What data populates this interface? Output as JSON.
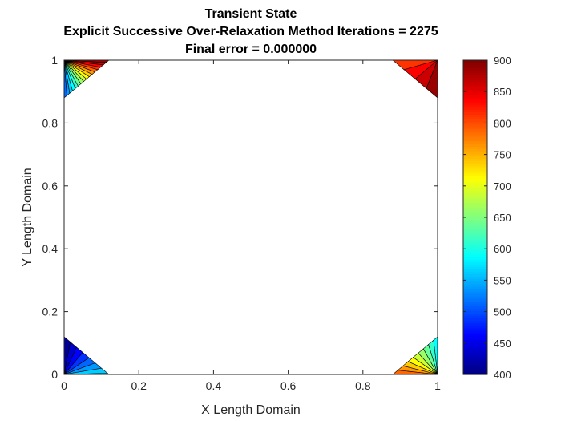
{
  "chart_data": {
    "type": "contour",
    "title_lines": [
      "Transient State",
      "Explicit Successive Over-Relaxation Method Iterations = 2275",
      "Final error = 0.000000"
    ],
    "xlabel": "X Length Domain",
    "ylabel": "Y Length Domain",
    "xlim": [
      0,
      1
    ],
    "ylim": [
      0,
      1
    ],
    "xticks": [
      0,
      0.2,
      0.4,
      0.6,
      0.8,
      1
    ],
    "xtick_labels": [
      "0",
      "0.2",
      "0.4",
      "0.6",
      "0.8",
      "1"
    ],
    "yticks": [
      0,
      0.2,
      0.4,
      0.6,
      0.8,
      1
    ],
    "ytick_labels": [
      "0",
      "0.2",
      "0.4",
      "0.6",
      "0.8",
      "1"
    ],
    "colormap": "jet",
    "clim": [
      400,
      900
    ],
    "colorbar_ticks": [
      400,
      450,
      500,
      550,
      600,
      650,
      700,
      750,
      800,
      850,
      900
    ],
    "colorbar_tick_labels": [
      "400",
      "450",
      "500",
      "550",
      "600",
      "650",
      "700",
      "750",
      "800",
      "850",
      "900"
    ],
    "contour_levels": [
      400,
      425,
      450,
      475,
      500,
      525,
      550,
      575,
      600,
      625,
      650,
      675,
      700,
      725,
      750,
      775,
      800,
      825,
      850,
      875,
      900
    ],
    "corner_regions": [
      {
        "corner": "top-left",
        "extent": 0.12,
        "values_along_edge": [
          500,
          900
        ]
      },
      {
        "corner": "top-right",
        "extent": 0.12,
        "values_along_edge": [
          900,
          800
        ]
      },
      {
        "corner": "bottom-left",
        "extent": 0.12,
        "values_along_edge": [
          400,
          580
        ]
      },
      {
        "corner": "bottom-right",
        "extent": 0.12,
        "values_along_edge": [
          580,
          800
        ]
      }
    ]
  }
}
